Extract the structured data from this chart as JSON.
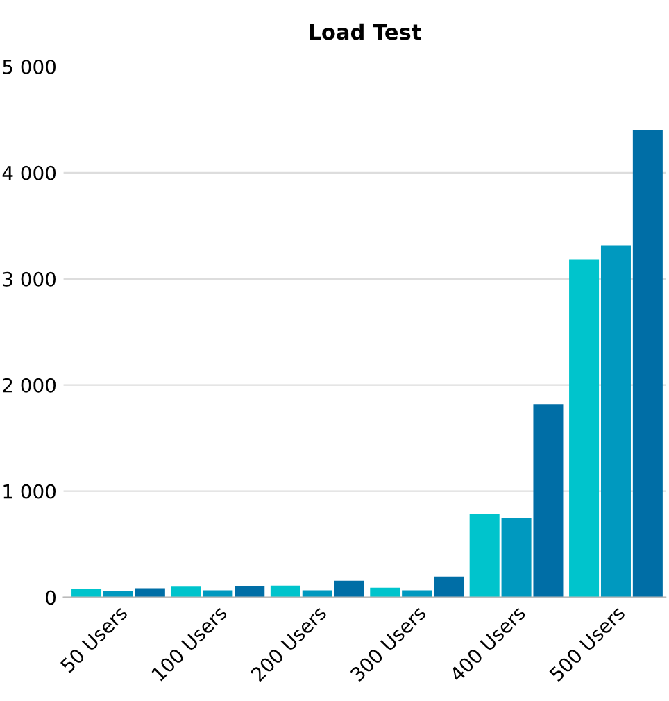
{
  "chart_data": {
    "type": "bar",
    "title": "Load Test",
    "categories": [
      "50 Users",
      "100 Users",
      "200 Users",
      "300 Users",
      "400 Users",
      "500 Users"
    ],
    "series": [
      {
        "color": "#00c4cc",
        "values": [
          75,
          100,
          110,
          90,
          785,
          3185
        ]
      },
      {
        "color": "#0099bf",
        "values": [
          55,
          65,
          65,
          65,
          745,
          3315
        ]
      },
      {
        "color": "#006ea6",
        "values": [
          85,
          105,
          155,
          195,
          1820,
          4400
        ]
      }
    ],
    "ylim": [
      0,
      5000
    ],
    "yticks": [
      0,
      {
        "value": 1000,
        "label": "1 000"
      },
      {
        "value": 2000,
        "label": "2 000"
      },
      {
        "value": 3000,
        "label": "3 000"
      },
      {
        "value": 4000,
        "label": "4 000"
      },
      {
        "value": 5000,
        "label": "5 000"
      }
    ],
    "grid": "y",
    "legend": false
  }
}
